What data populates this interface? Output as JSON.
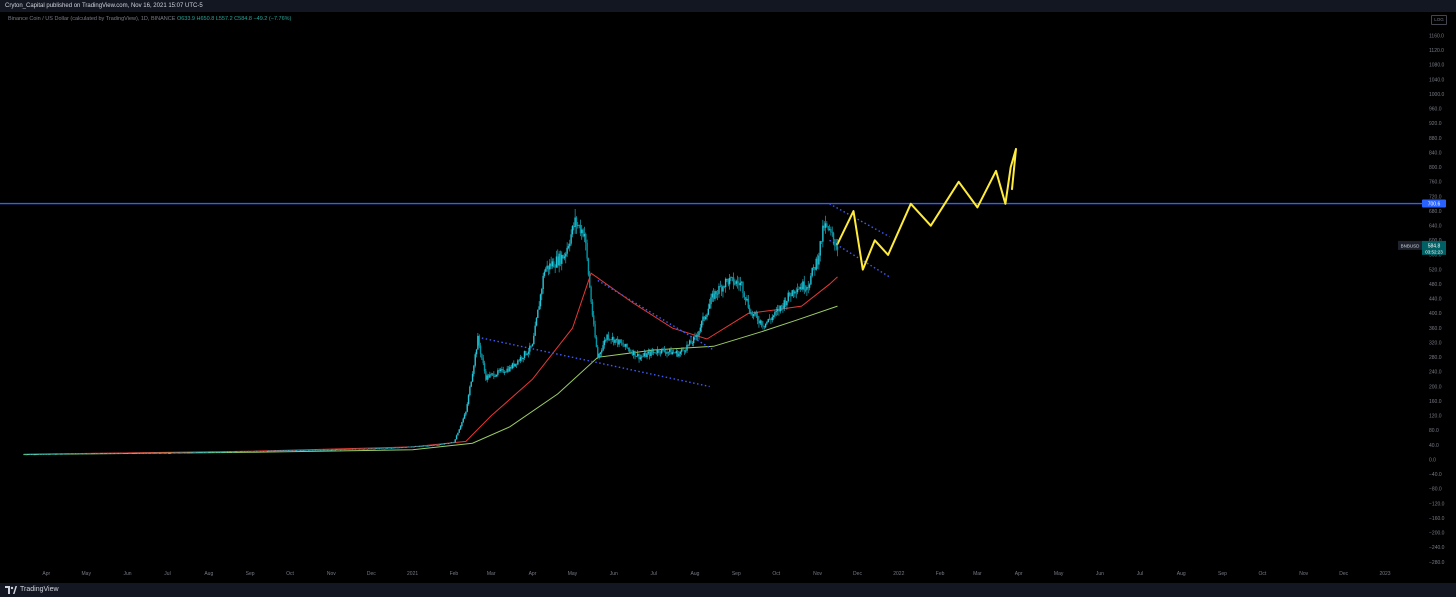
{
  "header": {
    "published": "Cryton_Capital published on TradingView.com, Nov 16, 2021 15:07 UTC-5"
  },
  "legend": {
    "symbol": "Binance Coin / US Dollar (calculated by TradingView), 1D, BINANCE",
    "open": "O633.9",
    "high": "H650.8",
    "low": "L557.2",
    "close": "C584.8",
    "change": "−49.2 (−7.76%)"
  },
  "scale_button": "LOG",
  "footer": {
    "brand": "TradingView"
  },
  "colors": {
    "background": "#000000",
    "candle": "#26c6da",
    "ma_fast": "#e53935",
    "ma_slow": "#9ccc65",
    "resistance": "#2962ff",
    "trendline": "#3d5afe",
    "drawing": "#ffeb3b",
    "axis_text": "#787b86"
  },
  "chart_data": {
    "type": "line",
    "title": "",
    "xlabel": "",
    "ylabel": "",
    "ylim": [
      -280,
      1200
    ],
    "y_ticks": [
      "1160.0",
      "1120.0",
      "1080.0",
      "1040.0",
      "1000.0",
      "960.0",
      "920.0",
      "880.0",
      "840.0",
      "800.0",
      "760.0",
      "720.0",
      "680.0",
      "640.0",
      "600.0",
      "560.0",
      "520.0",
      "480.0",
      "440.0",
      "400.0",
      "360.0",
      "320.0",
      "280.0",
      "240.0",
      "200.0",
      "160.0",
      "120.0",
      "80.0",
      "40.0",
      "0.0",
      "−40.0",
      "−80.0",
      "−120.0",
      "−160.0",
      "−200.0",
      "−240.0",
      "−280.0"
    ],
    "x_ticks": [
      "Apr",
      "May",
      "Jun",
      "Jul",
      "Aug",
      "Sep",
      "Oct",
      "Nov",
      "Dec",
      "2021",
      "Feb",
      "Mar",
      "Apr",
      "May",
      "Jun",
      "Jul",
      "Aug",
      "Sep",
      "Oct",
      "Nov",
      "Dec",
      "2022",
      "Feb",
      "Mar",
      "Apr",
      "May",
      "Jun",
      "Jul",
      "Aug",
      "Sep",
      "Oct",
      "Nov",
      "Dec",
      "2023"
    ],
    "series": [
      {
        "kind": "price",
        "x": [
          "2020-03-15",
          "2020-05-01",
          "2020-07-01",
          "2020-09-01",
          "2020-11-01",
          "2020-12-15",
          "2021-01-20",
          "2021-02-01",
          "2021-02-10",
          "2021-02-19",
          "2021-02-25",
          "2021-03-15",
          "2021-04-01",
          "2021-04-10",
          "2021-04-25",
          "2021-05-03",
          "2021-05-10",
          "2021-05-17",
          "2021-05-20",
          "2021-05-27",
          "2021-06-05",
          "2021-06-21",
          "2021-07-05",
          "2021-07-20",
          "2021-08-01",
          "2021-08-15",
          "2021-08-25",
          "2021-09-05",
          "2021-09-12",
          "2021-09-22",
          "2021-10-01",
          "2021-10-15",
          "2021-10-25",
          "2021-11-01",
          "2021-11-06",
          "2021-11-10",
          "2021-11-16"
        ],
        "values": [
          14,
          17,
          18,
          23,
          27,
          31,
          40,
          48,
          130,
          330,
          225,
          250,
          310,
          520,
          560,
          650,
          620,
          360,
          280,
          340,
          320,
          280,
          300,
          290,
          330,
          450,
          490,
          480,
          400,
          370,
          400,
          470,
          480,
          550,
          640,
          620,
          584.8
        ]
      },
      {
        "kind": "ma_fast",
        "x": [
          "2020-03-15",
          "2020-09-01",
          "2021-01-01",
          "2021-02-10",
          "2021-03-01",
          "2021-04-01",
          "2021-05-01",
          "2021-05-15",
          "2021-06-15",
          "2021-07-15",
          "2021-08-10",
          "2021-09-10",
          "2021-10-01",
          "2021-10-20",
          "2021-11-10",
          "2021-11-16"
        ],
        "values": [
          15,
          23,
          35,
          50,
          120,
          220,
          360,
          510,
          430,
          360,
          330,
          400,
          410,
          420,
          480,
          500
        ]
      },
      {
        "kind": "ma_slow",
        "x": [
          "2020-03-15",
          "2020-09-01",
          "2021-01-01",
          "2021-02-15",
          "2021-03-15",
          "2021-04-20",
          "2021-05-20",
          "2021-07-01",
          "2021-08-15",
          "2021-09-20",
          "2021-10-15",
          "2021-11-16"
        ],
        "values": [
          14,
          20,
          27,
          45,
          90,
          180,
          280,
          300,
          310,
          350,
          380,
          420
        ]
      }
    ],
    "annotations": [
      {
        "kind": "horizontal",
        "value": 700.6,
        "label": "700.6",
        "color": "#2962ff"
      },
      {
        "kind": "price_label",
        "value": 584.8,
        "symbol": "BNBUSD",
        "price": "584.8",
        "countdown": "03:52:23"
      },
      {
        "kind": "trendline",
        "x": [
          "2021-02-19",
          "2021-08-12"
        ],
        "values": [
          335,
          200
        ]
      },
      {
        "kind": "trendline",
        "x": [
          "2021-05-20",
          "2021-08-15"
        ],
        "values": [
          490,
          300
        ]
      },
      {
        "kind": "trendline",
        "x": [
          "2021-11-10",
          "2021-12-25"
        ],
        "values": [
          700,
          610
        ]
      },
      {
        "kind": "trendline",
        "x": [
          "2021-11-10",
          "2021-12-25"
        ],
        "values": [
          600,
          500
        ]
      },
      {
        "kind": "projection",
        "x": [
          "2021-11-16",
          "2021-11-28",
          "2021-12-05",
          "2021-12-14",
          "2021-12-24",
          "2022-01-10",
          "2022-01-25",
          "2022-02-15",
          "2022-03-01",
          "2022-03-15",
          "2022-03-22",
          "2022-03-26",
          "2022-03-30",
          "2022-03-27"
        ],
        "values": [
          590,
          680,
          520,
          600,
          560,
          700,
          640,
          760,
          690,
          790,
          700,
          800,
          850,
          740
        ]
      }
    ]
  }
}
